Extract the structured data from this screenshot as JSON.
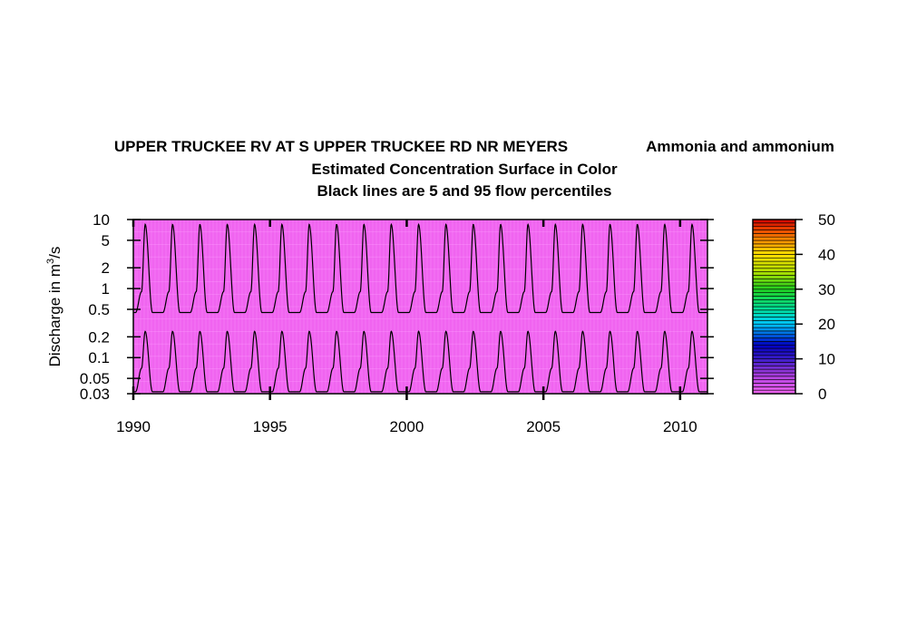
{
  "chart_data": {
    "type": "heatmap",
    "title": {
      "site": "UPPER TRUCKEE RV AT S UPPER TRUCKEE RD NR MEYERS",
      "constituent": "Ammonia and ammonium",
      "line2": "Estimated Concentration Surface in Color",
      "line3": "Black lines are 5 and 95 flow percentiles"
    },
    "ylabel": {
      "prefix": "Discharge in m",
      "superscript": "3",
      "suffix": "/s"
    },
    "y_scale": "log",
    "ylim": [
      0.03,
      10
    ],
    "y_ticks": [
      {
        "value": 10,
        "label": "10"
      },
      {
        "value": 5,
        "label": "5"
      },
      {
        "value": 2,
        "label": "2"
      },
      {
        "value": 1,
        "label": "1"
      },
      {
        "value": 0.5,
        "label": "0.5"
      },
      {
        "value": 0.2,
        "label": "0.2"
      },
      {
        "value": 0.1,
        "label": "0.1"
      },
      {
        "value": 0.05,
        "label": "0.05"
      },
      {
        "value": 0.03,
        "label": "0.03"
      }
    ],
    "xlim": [
      1990,
      2011
    ],
    "x_ticks": [
      {
        "value": 1990,
        "label": "1990"
      },
      {
        "value": 1995,
        "label": "1995"
      },
      {
        "value": 2000,
        "label": "2000"
      },
      {
        "value": 2005,
        "label": "2005"
      },
      {
        "value": 2010,
        "label": "2010"
      }
    ],
    "surface": {
      "color": "#f064f0",
      "concentration": 0
    },
    "colorbar": {
      "range": [
        0,
        50
      ],
      "tick_values": [
        0,
        10,
        20,
        30,
        40,
        50
      ],
      "tick_labels": [
        "0",
        "10",
        "20",
        "30",
        "40",
        "50"
      ],
      "stops": [
        {
          "value": 0,
          "color": "#f064f0"
        },
        {
          "value": 5,
          "color": "#b040e0"
        },
        {
          "value": 10,
          "color": "#3a1cc8"
        },
        {
          "value": 14,
          "color": "#0000c0"
        },
        {
          "value": 20,
          "color": "#00c8ff"
        },
        {
          "value": 24,
          "color": "#00e0a0"
        },
        {
          "value": 30,
          "color": "#20d020"
        },
        {
          "value": 35,
          "color": "#b0e000"
        },
        {
          "value": 40,
          "color": "#ffe000"
        },
        {
          "value": 44,
          "color": "#ff9000"
        },
        {
          "value": 50,
          "color": "#d00000"
        }
      ]
    },
    "series": [
      {
        "percentile": 95,
        "peak_month": 5.2,
        "peak_value": 8.5,
        "min_value": 0.45,
        "shoulder_month": 3.6,
        "shoulder_value": 0.9,
        "first_year": 1990,
        "last_year": 2010
      },
      {
        "percentile": 5,
        "peak_month": 5.2,
        "peak_value": 0.24,
        "min_value": 0.032,
        "shoulder_month": 3.6,
        "shoulder_value": 0.07,
        "first_year": 1990,
        "last_year": 2010
      }
    ]
  }
}
